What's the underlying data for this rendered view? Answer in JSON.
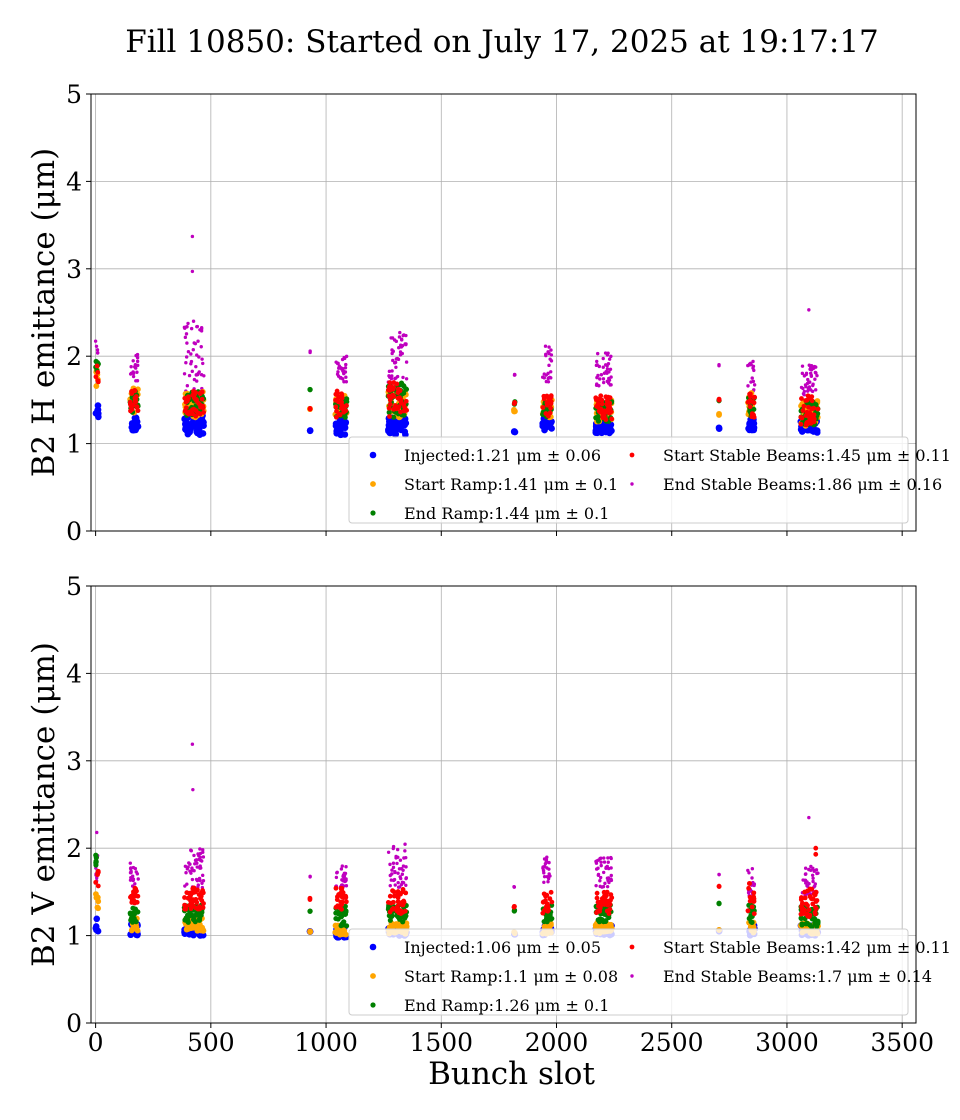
{
  "figure": {
    "suptitle": "Fill 10850: Started on July 17, 2025 at 19:17:17"
  },
  "colors": {
    "injected": "#0000ff",
    "start_ramp": "#ffa500",
    "end_ramp": "#008000",
    "start_stable": "#ff0000",
    "end_stable": "#bf00bf",
    "grid": "#b0b0b0"
  },
  "chart_data": [
    {
      "type": "scatter",
      "ylabel": "B2 H emittance (μm)",
      "xlabel": "",
      "xlim": [
        -20,
        3560
      ],
      "ylim": [
        0,
        5
      ],
      "xticks": [
        0,
        500,
        1000,
        1500,
        2000,
        2500,
        3000,
        3500
      ],
      "yticks": [
        0,
        1,
        2,
        3,
        4,
        5
      ],
      "show_xticklabels": false,
      "grid": true,
      "legend_location": "lower right",
      "legend_ncol": 2,
      "legend": [
        "Injected:1.21 μm ± 0.06",
        "Start Ramp:1.41 μm ± 0.1",
        "End Ramp:1.44 μm ± 0.1",
        "Start Stable Beams:1.45 μm ± 0.11",
        "End Stable Beams:1.86 μm ± 0.16"
      ],
      "series": [
        {
          "name": "Injected",
          "color_key": "injected",
          "mean": 1.21,
          "std": 0.06
        },
        {
          "name": "Start Ramp",
          "color_key": "start_ramp",
          "mean": 1.41,
          "std": 0.1
        },
        {
          "name": "End Ramp",
          "color_key": "end_ramp",
          "mean": 1.44,
          "std": 0.1
        },
        {
          "name": "Start Stable Beams",
          "color_key": "start_stable",
          "mean": 1.45,
          "std": 0.11
        },
        {
          "name": "End Stable Beams",
          "color_key": "end_stable",
          "mean": 1.86,
          "std": 0.16
        }
      ],
      "bunch_groups": [
        {
          "x": [
            0,
            12
          ],
          "inj": [
            1.3,
            1.45
          ],
          "sr": [
            1.65,
            1.85
          ],
          "er": [
            1.7,
            1.95
          ],
          "ssb": [
            1.7,
            1.9
          ],
          "esb": [
            1.85,
            2.2
          ]
        },
        {
          "x": [
            150,
            185
          ],
          "inj": [
            1.15,
            1.3
          ],
          "sr": [
            1.35,
            1.65
          ],
          "er": [
            1.35,
            1.6
          ],
          "ssb": [
            1.35,
            1.65
          ],
          "esb": [
            1.7,
            2.05
          ]
        },
        {
          "x": [
            385,
            470
          ],
          "inj": [
            1.1,
            1.32
          ],
          "sr": [
            1.3,
            1.6
          ],
          "er": [
            1.3,
            1.6
          ],
          "ssb": [
            1.3,
            1.6
          ],
          "esb": [
            1.6,
            2.4
          ]
        },
        {
          "x": [
            930,
            931
          ],
          "inj": [
            1.14,
            1.16
          ],
          "sr": [
            1.39,
            1.41
          ],
          "er": [
            1.6,
            1.62
          ],
          "ssb": [
            1.39,
            1.42
          ],
          "esb": [
            2.03,
            2.06
          ]
        },
        {
          "x": [
            1040,
            1090
          ],
          "inj": [
            1.1,
            1.3
          ],
          "sr": [
            1.3,
            1.55
          ],
          "er": [
            1.3,
            1.55
          ],
          "ssb": [
            1.3,
            1.65
          ],
          "esb": [
            1.7,
            2.0
          ]
        },
        {
          "x": [
            1270,
            1350
          ],
          "inj": [
            1.1,
            1.3
          ],
          "sr": [
            1.3,
            1.6
          ],
          "er": [
            1.3,
            1.7
          ],
          "ssb": [
            1.3,
            1.7
          ],
          "esb": [
            1.7,
            2.25
          ]
        },
        {
          "x": [
            1815,
            1820
          ],
          "inj": [
            1.13,
            1.16
          ],
          "sr": [
            1.35,
            1.4
          ],
          "er": [
            1.45,
            1.48
          ],
          "ssb": [
            1.45,
            1.48
          ],
          "esb": [
            1.77,
            1.8
          ]
        },
        {
          "x": [
            1940,
            1980
          ],
          "inj": [
            1.15,
            1.3
          ],
          "sr": [
            1.3,
            1.5
          ],
          "er": [
            1.3,
            1.5
          ],
          "ssb": [
            1.3,
            1.55
          ],
          "esb": [
            1.7,
            2.15
          ]
        },
        {
          "x": [
            2170,
            2240
          ],
          "inj": [
            1.12,
            1.25
          ],
          "sr": [
            1.25,
            1.5
          ],
          "er": [
            1.25,
            1.5
          ],
          "ssb": [
            1.25,
            1.55
          ],
          "esb": [
            1.65,
            2.05
          ]
        },
        {
          "x": [
            2705,
            2706
          ],
          "inj": [
            1.17,
            1.19
          ],
          "sr": [
            1.32,
            1.35
          ],
          "er": [
            1.48,
            1.5
          ],
          "ssb": [
            1.48,
            1.51
          ],
          "esb": [
            1.89,
            1.91
          ]
        },
        {
          "x": [
            2830,
            2860
          ],
          "inj": [
            1.15,
            1.28
          ],
          "sr": [
            1.3,
            1.6
          ],
          "er": [
            1.3,
            1.55
          ],
          "ssb": [
            1.3,
            1.6
          ],
          "esb": [
            1.6,
            1.95
          ]
        },
        {
          "x": [
            3060,
            3135
          ],
          "inj": [
            1.12,
            1.3
          ],
          "sr": [
            1.2,
            1.5
          ],
          "er": [
            1.2,
            1.5
          ],
          "ssb": [
            1.2,
            1.55
          ],
          "esb": [
            1.55,
            1.95
          ]
        }
      ],
      "outliers": [
        {
          "x": 420,
          "y": 3.37,
          "s": "esb"
        },
        {
          "x": 420,
          "y": 2.97,
          "s": "esb"
        },
        {
          "x": 425,
          "y": 2.4,
          "s": "esb"
        },
        {
          "x": 1320,
          "y": 2.27,
          "s": "esb"
        },
        {
          "x": 3095,
          "y": 2.53,
          "s": "esb"
        }
      ]
    },
    {
      "type": "scatter",
      "ylabel": "B2 V emittance (μm)",
      "xlabel": "Bunch slot",
      "xlim": [
        -20,
        3560
      ],
      "ylim": [
        0,
        5
      ],
      "xticks": [
        0,
        500,
        1000,
        1500,
        2000,
        2500,
        3000,
        3500
      ],
      "yticks": [
        0,
        1,
        2,
        3,
        4,
        5
      ],
      "show_xticklabels": true,
      "grid": true,
      "legend_location": "lower right",
      "legend_ncol": 2,
      "legend": [
        "Injected:1.06 μm ± 0.05",
        "Start Ramp:1.1 μm ± 0.08",
        "End Ramp:1.26 μm ± 0.1",
        "Start Stable Beams:1.42 μm ± 0.11",
        "End Stable Beams:1.7 μm ± 0.14"
      ],
      "series": [
        {
          "name": "Injected",
          "color_key": "injected",
          "mean": 1.06,
          "std": 0.05
        },
        {
          "name": "Start Ramp",
          "color_key": "start_ramp",
          "mean": 1.1,
          "std": 0.08
        },
        {
          "name": "End Ramp",
          "color_key": "end_ramp",
          "mean": 1.26,
          "std": 0.1
        },
        {
          "name": "Start Stable Beams",
          "color_key": "start_stable",
          "mean": 1.42,
          "std": 0.11
        },
        {
          "name": "End Stable Beams",
          "color_key": "end_stable",
          "mean": 1.7,
          "std": 0.14
        }
      ],
      "bunch_groups": [
        {
          "x": [
            0,
            12
          ],
          "inj": [
            1.05,
            1.25
          ],
          "sr": [
            1.3,
            1.5
          ],
          "er": [
            1.75,
            1.92
          ],
          "ssb": [
            1.55,
            1.75
          ],
          "esb": [
            1.6,
            1.95
          ]
        },
        {
          "x": [
            150,
            185
          ],
          "inj": [
            1.0,
            1.15
          ],
          "sr": [
            1.05,
            1.2
          ],
          "er": [
            1.15,
            1.35
          ],
          "ssb": [
            1.35,
            1.55
          ],
          "esb": [
            1.55,
            1.85
          ]
        },
        {
          "x": [
            385,
            470
          ],
          "inj": [
            1.0,
            1.12
          ],
          "sr": [
            1.05,
            1.2
          ],
          "er": [
            1.15,
            1.35
          ],
          "ssb": [
            1.3,
            1.55
          ],
          "esb": [
            1.55,
            2.0
          ]
        },
        {
          "x": [
            930,
            931
          ],
          "inj": [
            1.03,
            1.05
          ],
          "sr": [
            1.04,
            1.06
          ],
          "er": [
            1.27,
            1.29
          ],
          "ssb": [
            1.41,
            1.43
          ],
          "esb": [
            1.67,
            1.69
          ]
        },
        {
          "x": [
            1040,
            1090
          ],
          "inj": [
            0.98,
            1.1
          ],
          "sr": [
            1.0,
            1.12
          ],
          "er": [
            1.1,
            1.35
          ],
          "ssb": [
            1.3,
            1.55
          ],
          "esb": [
            1.55,
            1.8
          ]
        },
        {
          "x": [
            1270,
            1350
          ],
          "inj": [
            1.0,
            1.1
          ],
          "sr": [
            1.02,
            1.15
          ],
          "er": [
            1.15,
            1.35
          ],
          "ssb": [
            1.25,
            1.55
          ],
          "esb": [
            1.55,
            2.05
          ]
        },
        {
          "x": [
            1815,
            1820
          ],
          "inj": [
            1.01,
            1.03
          ],
          "sr": [
            1.02,
            1.04
          ],
          "er": [
            1.28,
            1.3
          ],
          "ssb": [
            1.32,
            1.34
          ],
          "esb": [
            1.54,
            1.56
          ]
        },
        {
          "x": [
            1940,
            1980
          ],
          "inj": [
            1.0,
            1.12
          ],
          "sr": [
            1.02,
            1.15
          ],
          "er": [
            1.15,
            1.35
          ],
          "ssb": [
            1.25,
            1.5
          ],
          "esb": [
            1.6,
            1.9
          ]
        },
        {
          "x": [
            2170,
            2240
          ],
          "inj": [
            1.0,
            1.12
          ],
          "sr": [
            1.02,
            1.15
          ],
          "er": [
            1.15,
            1.35
          ],
          "ssb": [
            1.25,
            1.5
          ],
          "esb": [
            1.55,
            1.9
          ]
        },
        {
          "x": [
            2705,
            2706
          ],
          "inj": [
            1.04,
            1.06
          ],
          "sr": [
            1.05,
            1.07
          ],
          "er": [
            1.35,
            1.37
          ],
          "ssb": [
            1.55,
            1.57
          ],
          "esb": [
            1.69,
            1.71
          ]
        },
        {
          "x": [
            2830,
            2860
          ],
          "inj": [
            1.0,
            1.12
          ],
          "sr": [
            1.02,
            1.15
          ],
          "er": [
            1.15,
            1.35
          ],
          "ssb": [
            1.25,
            1.6
          ],
          "esb": [
            1.45,
            1.8
          ]
        },
        {
          "x": [
            3060,
            3135
          ],
          "inj": [
            1.0,
            1.12
          ],
          "sr": [
            1.02,
            1.15
          ],
          "er": [
            1.1,
            1.35
          ],
          "ssb": [
            1.2,
            1.55
          ],
          "esb": [
            1.45,
            1.8
          ]
        }
      ],
      "outliers": [
        {
          "x": 420,
          "y": 3.19,
          "s": "esb"
        },
        {
          "x": 422,
          "y": 2.67,
          "s": "esb"
        },
        {
          "x": 3095,
          "y": 2.35,
          "s": "esb"
        },
        {
          "x": 3125,
          "y": 2.0,
          "s": "ssb"
        },
        {
          "x": 3125,
          "y": 1.93,
          "s": "ssb"
        },
        {
          "x": 5,
          "y": 2.18,
          "s": "esb"
        }
      ]
    }
  ]
}
